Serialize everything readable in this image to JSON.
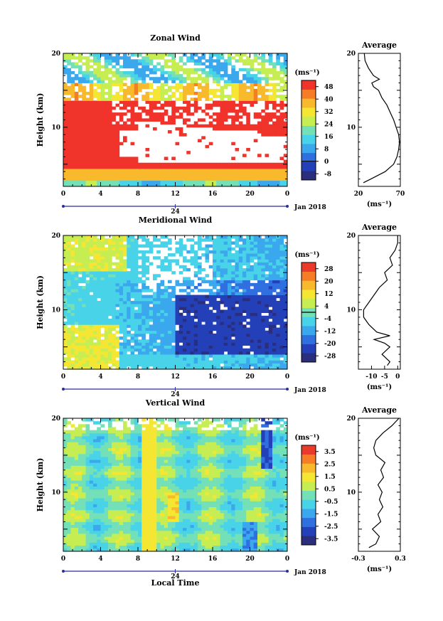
{
  "chart_data": [
    {
      "type": "heatmap",
      "title": "Zonal Wind",
      "ylabel": "Height (km)",
      "x_ticks": [
        "0",
        "4",
        "8",
        "12",
        "16",
        "20",
        "0"
      ],
      "y_ticks": [
        "20",
        "10"
      ],
      "xlim": [
        0,
        24
      ],
      "ylim": [
        2,
        20
      ],
      "date_tick": "24",
      "date_label": "Jan 2018",
      "colorbar": {
        "unit": "(ms⁻¹)",
        "ticks": [
          "48",
          "40",
          "32",
          "24",
          "16",
          "8",
          "0",
          "-8"
        ],
        "range": [
          -12,
          52
        ]
      },
      "profile": {
        "title": "Average",
        "unit": "(ms⁻¹)",
        "x_ticks": [
          "20",
          "70"
        ],
        "xlim": [
          20,
          70
        ],
        "y_ticks": [
          "20",
          "10"
        ],
        "height_km": [
          2.5,
          3,
          4,
          5,
          6,
          7,
          8,
          9,
          10,
          11,
          12,
          13,
          14,
          15,
          15.5,
          16,
          16.5,
          17,
          18,
          19,
          20
        ],
        "value": [
          26,
          35,
          52,
          62,
          66,
          68,
          69,
          68,
          65,
          62,
          58,
          54,
          48,
          44,
          38,
          36,
          45,
          38,
          32,
          28,
          27
        ]
      }
    },
    {
      "type": "heatmap",
      "title": "Meridional Wind",
      "ylabel": "Height (km)",
      "x_ticks": [
        "0",
        "4",
        "8",
        "12",
        "16",
        "20",
        "0"
      ],
      "y_ticks": [
        "20",
        "10"
      ],
      "xlim": [
        0,
        24
      ],
      "ylim": [
        2,
        20
      ],
      "date_tick": "24",
      "date_label": "Jan 2018",
      "colorbar": {
        "unit": "(ms⁻¹)",
        "ticks": [
          "28",
          "20",
          "12",
          "4",
          "-4",
          "-12",
          "-20",
          "-28"
        ],
        "range": [
          -32,
          32
        ]
      },
      "profile": {
        "title": "Average",
        "unit": "(ms⁻¹)",
        "x_ticks": [
          "-10",
          "-5",
          "0"
        ],
        "xlim": [
          -15,
          1
        ],
        "y_ticks": [
          "20",
          "10"
        ],
        "height_km": [
          2.5,
          3,
          4,
          5,
          5.5,
          6,
          6.5,
          7,
          8,
          9,
          10,
          11,
          12,
          13,
          14,
          15,
          16,
          17,
          18,
          19,
          20
        ],
        "value": [
          -4,
          -3,
          -6,
          -3,
          -5,
          -9,
          -3,
          -8,
          -11,
          -13,
          -13,
          -11,
          -9,
          -7,
          -4,
          -5,
          -2,
          -3,
          -1,
          0,
          0
        ]
      }
    },
    {
      "type": "heatmap",
      "title": "Vertical Wind",
      "ylabel": "Height (km)",
      "xlabel": "Local Time",
      "x_ticks": [
        "0",
        "4",
        "8",
        "12",
        "16",
        "20",
        "0"
      ],
      "y_ticks": [
        "20",
        "10"
      ],
      "xlim": [
        0,
        24
      ],
      "ylim": [
        2,
        20
      ],
      "date_tick": "24",
      "date_label": "Jan 2018",
      "colorbar": {
        "unit": "(ms⁻¹)",
        "ticks": [
          "3.5",
          "2.5",
          "1.5",
          "0.5",
          "-0.5",
          "-1.5",
          "-2.5",
          "-3.5"
        ],
        "range": [
          -4,
          4
        ]
      },
      "profile": {
        "title": "Average",
        "unit": "(ms⁻¹)",
        "x_ticks": [
          "-0.3",
          "0.3"
        ],
        "xlim": [
          -0.3,
          0.3
        ],
        "y_ticks": [
          "20",
          "10"
        ],
        "height_km": [
          2.5,
          3,
          4,
          5,
          6,
          7,
          8,
          9,
          10,
          11,
          12,
          13,
          14,
          15,
          16,
          17,
          18,
          19,
          20
        ],
        "value": [
          -0.15,
          -0.05,
          0.0,
          -0.1,
          0.02,
          -0.02,
          0.05,
          0.0,
          0.04,
          -0.02,
          0.06,
          0.02,
          0.08,
          -0.05,
          -0.08,
          -0.05,
          0.05,
          0.18,
          0.28
        ]
      }
    }
  ],
  "colors": {
    "scale": [
      "#2b2e7d",
      "#2440b8",
      "#2f6fe0",
      "#3ba8ee",
      "#48d3e8",
      "#74e0b8",
      "#c6ee52",
      "#f5e634",
      "#f8b92c",
      "#f67d26",
      "#ea3b2a"
    ],
    "zonal_top_color": "#f0332b"
  }
}
